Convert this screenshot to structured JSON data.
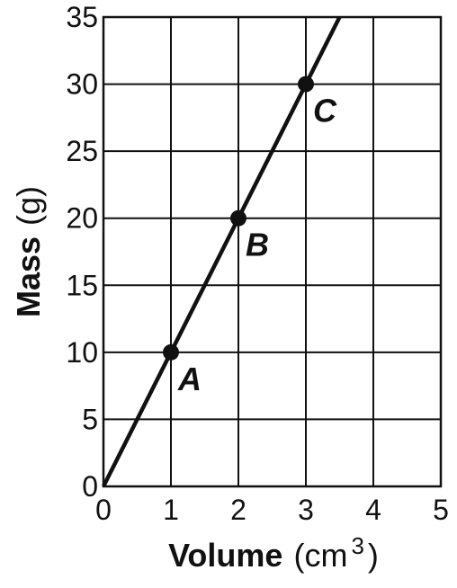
{
  "chart_data": {
    "type": "line",
    "title": "",
    "xlabel": {
      "main": "Volume",
      "unit_open": "(cm",
      "unit_sup": "3",
      "unit_close": ")"
    },
    "ylabel": {
      "main": "Mass",
      "unit": "(g)"
    },
    "xlim": [
      0,
      5
    ],
    "ylim": [
      0,
      35
    ],
    "x_ticks": [
      0,
      1,
      2,
      3,
      4,
      5
    ],
    "y_ticks": [
      0,
      5,
      10,
      15,
      20,
      25,
      30,
      35
    ],
    "x_tick_labels": [
      "0",
      "1",
      "2",
      "3",
      "4",
      "5"
    ],
    "y_tick_labels": [
      "0",
      "5",
      "10",
      "15",
      "20",
      "25",
      "30",
      "35"
    ],
    "grid": true,
    "legend": "none",
    "line": {
      "x": [
        0,
        3.5
      ],
      "y": [
        0,
        35
      ]
    },
    "points": [
      {
        "label": "A",
        "x": 1,
        "y": 10
      },
      {
        "label": "B",
        "x": 2,
        "y": 20
      },
      {
        "label": "C",
        "x": 3,
        "y": 30
      }
    ],
    "colors": {
      "line": "#111111",
      "grid": "#111111",
      "background": "#ffffff"
    }
  }
}
